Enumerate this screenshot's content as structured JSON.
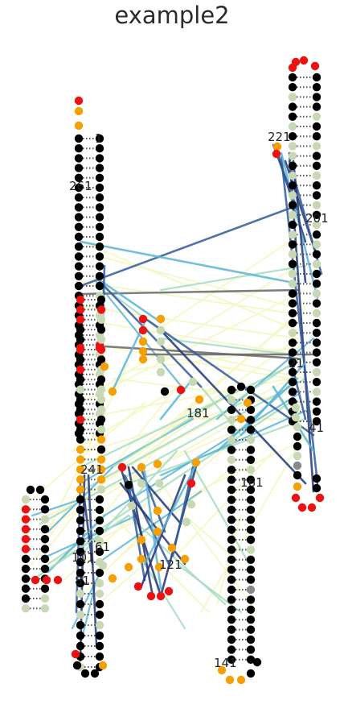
{
  "title": "example2",
  "colors": {
    "paired": "#000000",
    "unpaired_red": "#ee1111",
    "unpaired_orange": "#f5a000",
    "mixed_light": "#c8d8b4",
    "mixed_grey": "#888888",
    "pair_dots": "#555555",
    "link_pale": "#f5f7c4",
    "link_green": "#a5dcc0",
    "link_cyan": "#5ab4d6",
    "link_blue": "#2f5b9e",
    "link_navy": "#1f3577",
    "link_grey": "#666666"
  },
  "labels": {
    "l1": "1",
    "l21": "21",
    "l41": "41",
    "l61": "61",
    "l81": "81",
    "l101": "101",
    "l121": "121",
    "l141": "141",
    "l161": "161",
    "l181": "181",
    "l201": "201",
    "l221": "221",
    "l241": "241",
    "l261": "261"
  }
}
